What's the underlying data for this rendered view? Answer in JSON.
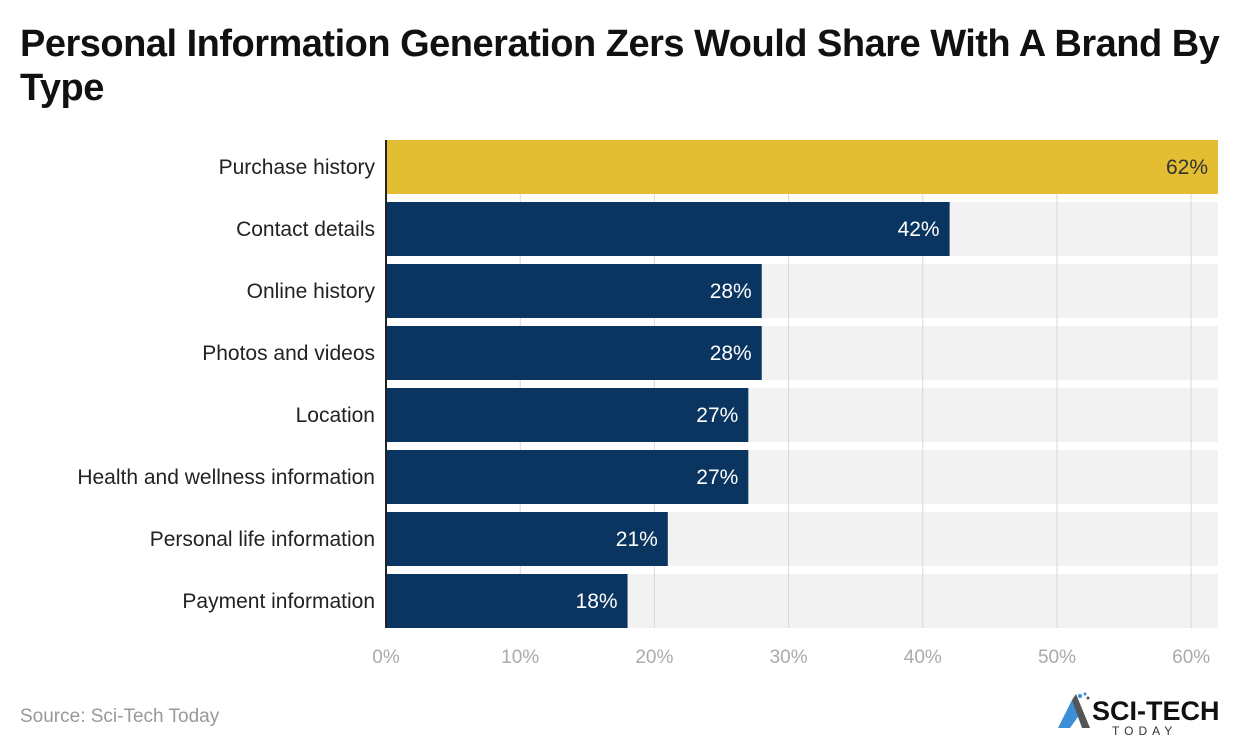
{
  "title": "Personal Information Generation Zers Would Share With A Brand By Type",
  "source": "Source: Sci-Tech Today",
  "logo": {
    "text": "SCI-TECH",
    "subtext": "TODAY"
  },
  "colors": {
    "highlight": "#e3bd32",
    "bar": "#0a3561",
    "track": "#f2f2f2",
    "grid": "#d8d8d8"
  },
  "chart_data": {
    "type": "bar",
    "orientation": "horizontal",
    "categories": [
      "Purchase history",
      "Contact details",
      "Online history",
      "Photos and videos",
      "Location",
      "Health and wellness information",
      "Personal life information",
      "Payment information"
    ],
    "values": [
      62,
      42,
      28,
      28,
      27,
      27,
      21,
      18
    ],
    "data_labels": [
      "62%",
      "42%",
      "28%",
      "28%",
      "27%",
      "27%",
      "21%",
      "18%"
    ],
    "xlim": [
      0,
      62
    ],
    "xticks": [
      0,
      10,
      20,
      30,
      40,
      50,
      60
    ],
    "xtick_labels": [
      "0%",
      "10%",
      "20%",
      "30%",
      "40%",
      "50%",
      "60%"
    ],
    "grid": true,
    "highlighted_category": "Purchase history"
  }
}
